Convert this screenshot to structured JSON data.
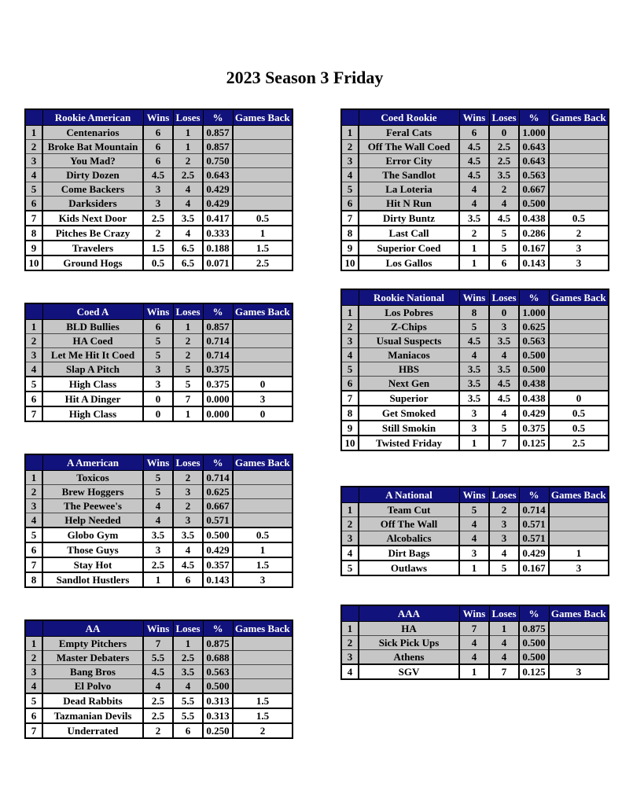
{
  "page_title": "2023 Season 3 Friday",
  "column_headers": {
    "wins": "Wins",
    "loses": "Loses",
    "pct": "%",
    "games_back": "Games Back"
  },
  "colors": {
    "header_bg": "#12127c",
    "header_text": "#ffffff",
    "qualified_row_bg": "#c6c6c6",
    "eliminated_row_bg": "#ffffff",
    "border": "#000000"
  },
  "tables": [
    {
      "name": "Rookie American",
      "column": "left",
      "rows": [
        {
          "rank": "1",
          "team": "Centenarios",
          "wins": "6",
          "loses": "1",
          "pct": "0.857",
          "games_back": "",
          "section": "above"
        },
        {
          "rank": "2",
          "team": "Broke Bat Mountain",
          "wins": "6",
          "loses": "1",
          "pct": "0.857",
          "games_back": "",
          "section": "above"
        },
        {
          "rank": "3",
          "team": "You Mad?",
          "wins": "6",
          "loses": "2",
          "pct": "0.750",
          "games_back": "",
          "section": "above"
        },
        {
          "rank": "4",
          "team": "Dirty Dozen",
          "wins": "4.5",
          "loses": "2.5",
          "pct": "0.643",
          "games_back": "",
          "section": "above"
        },
        {
          "rank": "5",
          "team": "Come Backers",
          "wins": "3",
          "loses": "4",
          "pct": "0.429",
          "games_back": "",
          "section": "above"
        },
        {
          "rank": "6",
          "team": "Darksiders",
          "wins": "3",
          "loses": "4",
          "pct": "0.429",
          "games_back": "",
          "section": "above"
        },
        {
          "rank": "7",
          "team": "Kids Next Door",
          "wins": "2.5",
          "loses": "3.5",
          "pct": "0.417",
          "games_back": "0.5",
          "section": "below"
        },
        {
          "rank": "8",
          "team": "Pitches Be Crazy",
          "wins": "2",
          "loses": "4",
          "pct": "0.333",
          "games_back": "1",
          "section": "below"
        },
        {
          "rank": "9",
          "team": "Travelers",
          "wins": "1.5",
          "loses": "6.5",
          "pct": "0.188",
          "games_back": "1.5",
          "section": "below"
        },
        {
          "rank": "10",
          "team": "Ground Hogs",
          "wins": "0.5",
          "loses": "6.5",
          "pct": "0.071",
          "games_back": "2.5",
          "section": "below"
        }
      ]
    },
    {
      "name": "Coed A",
      "column": "left",
      "rows": [
        {
          "rank": "1",
          "team": "BLD Bullies",
          "wins": "6",
          "loses": "1",
          "pct": "0.857",
          "games_back": "",
          "section": "above"
        },
        {
          "rank": "2",
          "team": "HA Coed",
          "wins": "5",
          "loses": "2",
          "pct": "0.714",
          "games_back": "",
          "section": "above"
        },
        {
          "rank": "3",
          "team": "Let Me Hit It Coed",
          "wins": "5",
          "loses": "2",
          "pct": "0.714",
          "games_back": "",
          "section": "above"
        },
        {
          "rank": "4",
          "team": "Slap A Pitch",
          "wins": "3",
          "loses": "5",
          "pct": "0.375",
          "games_back": "",
          "section": "above"
        },
        {
          "rank": "5",
          "team": "High Class",
          "wins": "3",
          "loses": "5",
          "pct": "0.375",
          "games_back": "0",
          "section": "below"
        },
        {
          "rank": "6",
          "team": "Hit A Dinger",
          "wins": "0",
          "loses": "7",
          "pct": "0.000",
          "games_back": "3",
          "section": "below"
        },
        {
          "rank": "7",
          "team": "High Class",
          "wins": "0",
          "loses": "1",
          "pct": "0.000",
          "games_back": "0",
          "section": "below"
        }
      ]
    },
    {
      "name": "A American",
      "column": "left",
      "rows": [
        {
          "rank": "1",
          "team": "Toxicos",
          "wins": "5",
          "loses": "2",
          "pct": "0.714",
          "games_back": "",
          "section": "above"
        },
        {
          "rank": "2",
          "team": "Brew Hoggers",
          "wins": "5",
          "loses": "3",
          "pct": "0.625",
          "games_back": "",
          "section": "above"
        },
        {
          "rank": "3",
          "team": "The Peewee's",
          "wins": "4",
          "loses": "2",
          "pct": "0.667",
          "games_back": "",
          "section": "above"
        },
        {
          "rank": "4",
          "team": "Help Needed",
          "wins": "4",
          "loses": "3",
          "pct": "0.571",
          "games_back": "",
          "section": "above"
        },
        {
          "rank": "5",
          "team": "Globo Gym",
          "wins": "3.5",
          "loses": "3.5",
          "pct": "0.500",
          "games_back": "0.5",
          "section": "below"
        },
        {
          "rank": "6",
          "team": "Those Guys",
          "wins": "3",
          "loses": "4",
          "pct": "0.429",
          "games_back": "1",
          "section": "below"
        },
        {
          "rank": "7",
          "team": "Stay Hot",
          "wins": "2.5",
          "loses": "4.5",
          "pct": "0.357",
          "games_back": "1.5",
          "section": "below"
        },
        {
          "rank": "8",
          "team": "Sandlot Hustlers",
          "wins": "1",
          "loses": "6",
          "pct": "0.143",
          "games_back": "3",
          "section": "below"
        }
      ]
    },
    {
      "name": "AA",
      "column": "left",
      "rows": [
        {
          "rank": "1",
          "team": "Empty Pitchers",
          "wins": "7",
          "loses": "1",
          "pct": "0.875",
          "games_back": "",
          "section": "above"
        },
        {
          "rank": "2",
          "team": "Master Debaters",
          "wins": "5.5",
          "loses": "2.5",
          "pct": "0.688",
          "games_back": "",
          "section": "above"
        },
        {
          "rank": "3",
          "team": "Bang Bros",
          "wins": "4.5",
          "loses": "3.5",
          "pct": "0.563",
          "games_back": "",
          "section": "above"
        },
        {
          "rank": "4",
          "team": "El Polvo",
          "wins": "4",
          "loses": "4",
          "pct": "0.500",
          "games_back": "",
          "section": "above"
        },
        {
          "rank": "5",
          "team": "Dead Rabbits",
          "wins": "2.5",
          "loses": "5.5",
          "pct": "0.313",
          "games_back": "1.5",
          "section": "below"
        },
        {
          "rank": "6",
          "team": "Tazmanian Devils",
          "wins": "2.5",
          "loses": "5.5",
          "pct": "0.313",
          "games_back": "1.5",
          "section": "below"
        },
        {
          "rank": "7",
          "team": "Underrated",
          "wins": "2",
          "loses": "6",
          "pct": "0.250",
          "games_back": "2",
          "section": "below"
        }
      ]
    },
    {
      "name": "Coed Rookie",
      "column": "right",
      "rows": [
        {
          "rank": "1",
          "team": "Feral Cats",
          "wins": "6",
          "loses": "0",
          "pct": "1.000",
          "games_back": "",
          "section": "above"
        },
        {
          "rank": "2",
          "team": "Off The Wall Coed",
          "wins": "4.5",
          "loses": "2.5",
          "pct": "0.643",
          "games_back": "",
          "section": "above"
        },
        {
          "rank": "3",
          "team": "Error City",
          "wins": "4.5",
          "loses": "2.5",
          "pct": "0.643",
          "games_back": "",
          "section": "above"
        },
        {
          "rank": "4",
          "team": "The Sandlot",
          "wins": "4.5",
          "loses": "3.5",
          "pct": "0.563",
          "games_back": "",
          "section": "above"
        },
        {
          "rank": "5",
          "team": "La Loteria",
          "wins": "4",
          "loses": "2",
          "pct": "0.667",
          "games_back": "",
          "section": "above"
        },
        {
          "rank": "6",
          "team": "Hit N Run",
          "wins": "4",
          "loses": "4",
          "pct": "0.500",
          "games_back": "",
          "section": "above"
        },
        {
          "rank": "7",
          "team": "Dirty Buntz",
          "wins": "3.5",
          "loses": "4.5",
          "pct": "0.438",
          "games_back": "0.5",
          "section": "below"
        },
        {
          "rank": "8",
          "team": "Last Call",
          "wins": "2",
          "loses": "5",
          "pct": "0.286",
          "games_back": "2",
          "section": "below"
        },
        {
          "rank": "9",
          "team": "Superior Coed",
          "wins": "1",
          "loses": "5",
          "pct": "0.167",
          "games_back": "3",
          "section": "below"
        },
        {
          "rank": "10",
          "team": "Los Gallos",
          "wins": "1",
          "loses": "6",
          "pct": "0.143",
          "games_back": "3",
          "section": "below"
        }
      ]
    },
    {
      "name": "Rookie National",
      "column": "right",
      "rows": [
        {
          "rank": "1",
          "team": "Los Pobres",
          "wins": "8",
          "loses": "0",
          "pct": "1.000",
          "games_back": "",
          "section": "above"
        },
        {
          "rank": "2",
          "team": "Z-Chips",
          "wins": "5",
          "loses": "3",
          "pct": "0.625",
          "games_back": "",
          "section": "above"
        },
        {
          "rank": "3",
          "team": "Usual Suspects",
          "wins": "4.5",
          "loses": "3.5",
          "pct": "0.563",
          "games_back": "",
          "section": "above"
        },
        {
          "rank": "4",
          "team": "Maniacos",
          "wins": "4",
          "loses": "4",
          "pct": "0.500",
          "games_back": "",
          "section": "above"
        },
        {
          "rank": "5",
          "team": "HBS",
          "wins": "3.5",
          "loses": "3.5",
          "pct": "0.500",
          "games_back": "",
          "section": "above"
        },
        {
          "rank": "6",
          "team": "Next Gen",
          "wins": "3.5",
          "loses": "4.5",
          "pct": "0.438",
          "games_back": "",
          "section": "above"
        },
        {
          "rank": "7",
          "team": "Superior",
          "wins": "3.5",
          "loses": "4.5",
          "pct": "0.438",
          "games_back": "0",
          "section": "below"
        },
        {
          "rank": "8",
          "team": "Get Smoked",
          "wins": "3",
          "loses": "4",
          "pct": "0.429",
          "games_back": "0.5",
          "section": "below"
        },
        {
          "rank": "9",
          "team": "Still Smokin",
          "wins": "3",
          "loses": "5",
          "pct": "0.375",
          "games_back": "0.5",
          "section": "below"
        },
        {
          "rank": "10",
          "team": "Twisted Friday",
          "wins": "1",
          "loses": "7",
          "pct": "0.125",
          "games_back": "2.5",
          "section": "below"
        }
      ]
    },
    {
      "name": "A National",
      "column": "right",
      "rows": [
        {
          "rank": "1",
          "team": "Team Cut",
          "wins": "5",
          "loses": "2",
          "pct": "0.714",
          "games_back": "",
          "section": "above"
        },
        {
          "rank": "2",
          "team": "Off The Wall",
          "wins": "4",
          "loses": "3",
          "pct": "0.571",
          "games_back": "",
          "section": "above"
        },
        {
          "rank": "3",
          "team": "Alcobalics",
          "wins": "4",
          "loses": "3",
          "pct": "0.571",
          "games_back": "",
          "section": "above"
        },
        {
          "rank": "4",
          "team": "Dirt Bags",
          "wins": "3",
          "loses": "4",
          "pct": "0.429",
          "games_back": "1",
          "section": "below"
        },
        {
          "rank": "5",
          "team": "Outlaws",
          "wins": "1",
          "loses": "5",
          "pct": "0.167",
          "games_back": "3",
          "section": "below"
        }
      ]
    },
    {
      "name": "AAA",
      "column": "right",
      "rows": [
        {
          "rank": "1",
          "team": "HA",
          "wins": "7",
          "loses": "1",
          "pct": "0.875",
          "games_back": "",
          "section": "above"
        },
        {
          "rank": "2",
          "team": "Sick Pick Ups",
          "wins": "4",
          "loses": "4",
          "pct": "0.500",
          "games_back": "",
          "section": "above"
        },
        {
          "rank": "3",
          "team": "Athens",
          "wins": "4",
          "loses": "4",
          "pct": "0.500",
          "games_back": "",
          "section": "above"
        },
        {
          "rank": "4",
          "team": "SGV",
          "wins": "1",
          "loses": "7",
          "pct": "0.125",
          "games_back": "3",
          "section": "below"
        }
      ]
    }
  ]
}
